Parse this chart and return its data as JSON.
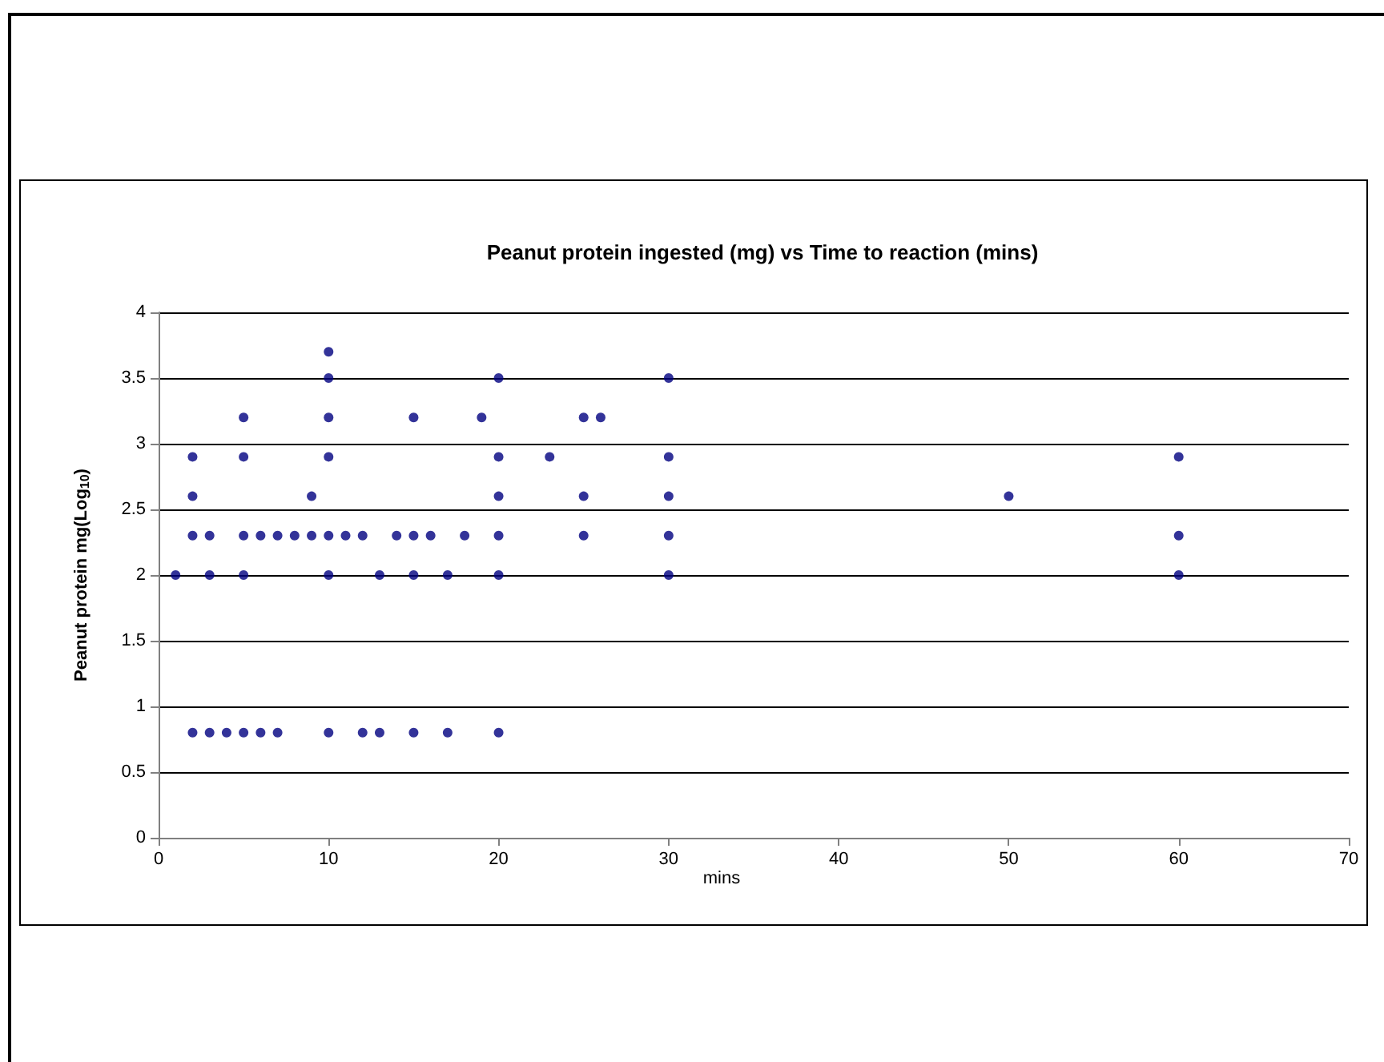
{
  "chart_data": {
    "type": "scatter",
    "title": "Peanut protein ingested (mg) vs Time to reaction (mins)",
    "xlabel": "mins",
    "ylabel": "Peanut protein mg(Log$_{10}$)",
    "xlim": [
      0,
      70
    ],
    "xticks": [
      0,
      10,
      20,
      30,
      40,
      50,
      60,
      70
    ],
    "ylim": [
      0,
      4
    ],
    "yticks": [
      0,
      0.5,
      1,
      1.5,
      2,
      2.5,
      3,
      3.5,
      4
    ],
    "grid": "y",
    "marker": "circle",
    "series": [
      {
        "color": "#000080",
        "x": [
          10,
          10,
          20,
          5,
          10,
          15,
          19,
          25,
          26,
          2,
          5,
          10,
          20,
          23,
          30,
          2,
          9,
          20,
          25,
          30,
          50,
          2,
          3,
          5,
          6,
          7,
          8,
          9,
          10,
          11,
          12,
          14,
          15,
          16,
          18,
          20,
          25,
          30,
          60,
          1,
          3,
          5,
          10,
          13,
          15,
          17,
          20,
          30,
          60,
          2,
          3,
          4,
          5,
          6,
          7,
          10,
          12,
          13,
          15,
          17,
          20,
          30,
          60
        ],
        "values": [
          3.7,
          3.5,
          3.5,
          3.2,
          3.2,
          3.2,
          3.2,
          3.2,
          3.2,
          2.9,
          2.9,
          2.9,
          2.9,
          2.9,
          2.9,
          2.6,
          2.6,
          2.6,
          2.6,
          2.6,
          2.6,
          2.3,
          2.3,
          2.3,
          2.3,
          2.3,
          2.3,
          2.3,
          2.3,
          2.3,
          2.3,
          2.3,
          2.3,
          2.3,
          2.3,
          2.3,
          2.3,
          2.3,
          2.3,
          2,
          2,
          2,
          2,
          2,
          2,
          2,
          2,
          2,
          2,
          0.8,
          0.8,
          0.8,
          0.8,
          0.8,
          0.8,
          0.8,
          0.8,
          0.8,
          0.8,
          0.8,
          0.8,
          3.5,
          2.9
        ]
      }
    ]
  }
}
